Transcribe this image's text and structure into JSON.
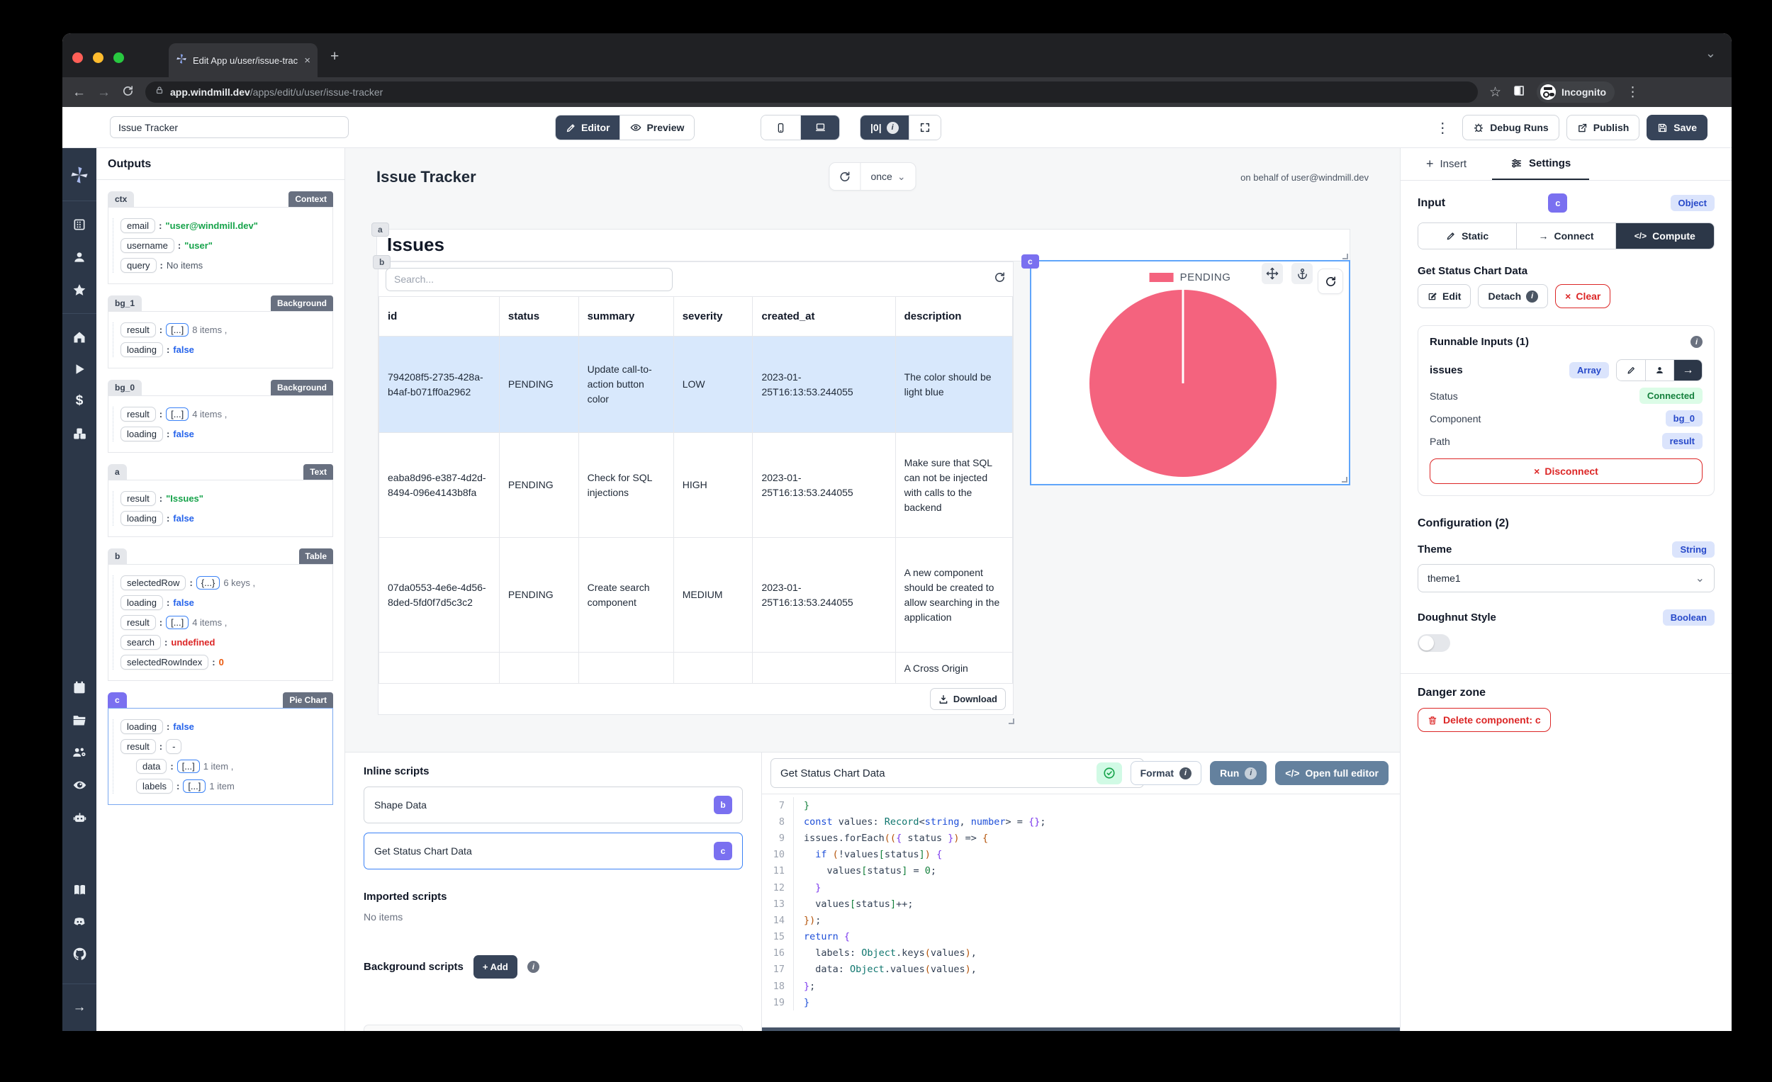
{
  "icons": {
    "close": "×",
    "new_tab": "+",
    "chevron_down": "⌄",
    "back": "←",
    "forward": "→",
    "kebab": "⋮",
    "star": "☆",
    "plus": "+",
    "x": "×",
    "check": "✓",
    "arrow_right": "→",
    "code": "</>",
    "debug_badge": "|0|",
    "info": "i",
    "dollar": "$",
    "play": "▶"
  },
  "browser": {
    "tab_title": "Edit App u/user/issue-tracker |",
    "url_domain": "app.windmill.dev",
    "url_path": "/apps/edit/u/user/issue-tracker",
    "incognito_label": "Incognito"
  },
  "appbar": {
    "app_name_value": "Issue Tracker",
    "editor": "Editor",
    "preview": "Preview",
    "debug_runs": "Debug Runs",
    "publish": "Publish",
    "save": "Save"
  },
  "outputs": {
    "title": "Outputs",
    "sections": [
      {
        "id": "ctx",
        "type": "Context",
        "rows": [
          {
            "key": "email",
            "value": "\"user@windmill.dev\""
          },
          {
            "key": "username",
            "value": "\"user\""
          },
          {
            "key": "query",
            "value": "No items"
          }
        ]
      },
      {
        "id": "bg_1",
        "type": "Background",
        "rows": [
          {
            "key": "result",
            "bracket": "[...]",
            "value": "8 items ,"
          },
          {
            "key": "loading",
            "value": "false"
          }
        ]
      },
      {
        "id": "bg_0",
        "type": "Background",
        "rows": [
          {
            "key": "result",
            "bracket": "[...]",
            "value": "4 items ,"
          },
          {
            "key": "loading",
            "value": "false"
          }
        ]
      },
      {
        "id": "a",
        "type": "Text",
        "rows": [
          {
            "key": "result",
            "value": "\"Issues\""
          },
          {
            "key": "loading",
            "value": "false"
          }
        ]
      },
      {
        "id": "b",
        "type": "Table",
        "rows": [
          {
            "key": "selectedRow",
            "bracket": "{...}",
            "value": "6 keys ,"
          },
          {
            "key": "loading",
            "value": "false"
          },
          {
            "key": "result",
            "bracket": "[...]",
            "value": "4 items ,"
          },
          {
            "key": "search",
            "value": "undefined"
          },
          {
            "key": "selectedRowIndex",
            "value": "0"
          }
        ]
      },
      {
        "id": "c",
        "type": "Pie Chart",
        "rows": [
          {
            "key": "loading",
            "value": "false"
          },
          {
            "key": "result",
            "bracket": "-",
            "value": ""
          },
          {
            "key": "data",
            "bracket": "[...]",
            "value": "1 item ,"
          },
          {
            "key": "labels",
            "bracket": "[...]",
            "value": "1 item"
          }
        ]
      }
    ]
  },
  "canvas": {
    "title": "Issue Tracker",
    "refresh_mode": "once",
    "behalf": "on behalf of user@windmill.dev",
    "issues_heading": "Issues",
    "search_placeholder": "Search...",
    "download": "Download",
    "badges": {
      "a": "a",
      "b": "b",
      "c": "c"
    },
    "table": {
      "headers": [
        "id",
        "status",
        "summary",
        "severity",
        "created_at",
        "description"
      ],
      "rows": [
        [
          "794208f5-2735-428a-b4af-b071ff0a2962",
          "PENDING",
          "Update call-to-action button color",
          "LOW",
          "2023-01-25T16:13:53.244055",
          "The color should be light blue"
        ],
        [
          "eaba8d96-e387-4d2d-8494-096e4143b8fa",
          "PENDING",
          "Check for SQL injections",
          "HIGH",
          "2023-01-25T16:13:53.244055",
          "Make sure that SQL can not be injected with calls to the backend"
        ],
        [
          "07da0553-4e6e-4d56-8ded-5fd0f7d5c3c2",
          "PENDING",
          "Create search component",
          "MEDIUM",
          "2023-01-25T16:13:53.244055",
          "A new component should be created to allow searching in the application"
        ],
        [
          "",
          "",
          "",
          "",
          "",
          "A Cross Origin"
        ]
      ]
    }
  },
  "chart_data": {
    "type": "pie",
    "labels": [
      "PENDING"
    ],
    "values": [
      4
    ],
    "colors": [
      "#f4637e"
    ],
    "title": "",
    "legend_position": "top"
  },
  "scripts_panel": {
    "inline_title": "Inline scripts",
    "items": [
      {
        "label": "Shape Data",
        "badge": "b"
      },
      {
        "label": "Get Status Chart Data",
        "badge": "c"
      }
    ],
    "imported_title": "Imported scripts",
    "imported_empty": "No items",
    "background_title": "Background scripts",
    "add": "+ Add"
  },
  "code_panel": {
    "name_value": "Get Status Chart Data",
    "format": "Format",
    "run": "Run",
    "open_full": "Open full editor",
    "lines": [
      {
        "n": 7,
        "seg": [
          [
            "pg",
            "}"
          ]
        ]
      },
      {
        "n": 8,
        "seg": [
          [
            "k",
            "const"
          ],
          [
            "d",
            " values: "
          ],
          [
            "t",
            "Record"
          ],
          [
            "d",
            "<"
          ],
          [
            "b",
            "string"
          ],
          [
            "d",
            ", "
          ],
          [
            "b",
            "number"
          ],
          [
            "d",
            "> = "
          ],
          [
            "pp",
            "{}"
          ],
          [
            "d",
            ";"
          ]
        ]
      },
      {
        "n": 9,
        "seg": [
          [
            "d",
            "issues.forEach"
          ],
          [
            "po",
            "(("
          ],
          [
            "pp",
            "{"
          ],
          [
            "d",
            " status "
          ],
          [
            "pp",
            "}"
          ],
          [
            "po",
            ")"
          ],
          [
            "d",
            " => "
          ],
          [
            "po",
            "{"
          ]
        ]
      },
      {
        "n": 10,
        "seg": [
          [
            "d",
            "  "
          ],
          [
            "k",
            "if"
          ],
          [
            "d",
            " "
          ],
          [
            "po",
            "("
          ],
          [
            "d",
            "!values"
          ],
          [
            "pg",
            "["
          ],
          [
            "d",
            "status"
          ],
          [
            "pg",
            "]"
          ],
          [
            "po",
            ")"
          ],
          [
            "d",
            " "
          ],
          [
            "pp",
            "{"
          ]
        ]
      },
      {
        "n": 11,
        "seg": [
          [
            "d",
            "    values"
          ],
          [
            "pg",
            "["
          ],
          [
            "d",
            "status"
          ],
          [
            "pg",
            "]"
          ],
          [
            "d",
            " = "
          ],
          [
            "n",
            "0"
          ],
          [
            "d",
            ";"
          ]
        ]
      },
      {
        "n": 12,
        "seg": [
          [
            "d",
            "  "
          ],
          [
            "pp",
            "}"
          ]
        ]
      },
      {
        "n": 13,
        "seg": [
          [
            "d",
            "  values"
          ],
          [
            "pg",
            "["
          ],
          [
            "d",
            "status"
          ],
          [
            "pg",
            "]"
          ],
          [
            "d",
            "++;"
          ]
        ]
      },
      {
        "n": 14,
        "seg": [
          [
            "po",
            "})"
          ],
          [
            "d",
            ";"
          ]
        ]
      },
      {
        "n": 15,
        "seg": [
          [
            "k",
            "return"
          ],
          [
            "d",
            " "
          ],
          [
            "pp",
            "{"
          ]
        ]
      },
      {
        "n": 16,
        "seg": [
          [
            "d",
            "  labels: "
          ],
          [
            "t",
            "Object"
          ],
          [
            "d",
            ".keys"
          ],
          [
            "po",
            "("
          ],
          [
            "d",
            "values"
          ],
          [
            "po",
            ")"
          ],
          [
            "d",
            ","
          ]
        ]
      },
      {
        "n": 17,
        "seg": [
          [
            "d",
            "  data: "
          ],
          [
            "t",
            "Object"
          ],
          [
            "d",
            ".values"
          ],
          [
            "po",
            "("
          ],
          [
            "d",
            "values"
          ],
          [
            "po",
            ")"
          ],
          [
            "d",
            ","
          ]
        ]
      },
      {
        "n": 18,
        "seg": [
          [
            "pp",
            "}"
          ],
          [
            "d",
            ";"
          ]
        ]
      },
      {
        "n": 19,
        "seg": [
          [
            "pb",
            "}"
          ]
        ]
      }
    ]
  },
  "settings": {
    "insert_tab": "Insert",
    "settings_tab": "Settings",
    "input_label": "Input",
    "component_badge": "c",
    "type_badge": "Object",
    "static_label": "Static",
    "connect_label": "Connect",
    "compute_label": "Compute",
    "script_name": "Get Status Chart Data",
    "edit": "Edit",
    "detach": "Detach",
    "clear": "Clear",
    "runnable_title": "Runnable Inputs (1)",
    "issues_label": "issues",
    "array_badge": "Array",
    "status_label": "Status",
    "status_value": "Connected",
    "component_label": "Component",
    "component_value": "bg_0",
    "path_label": "Path",
    "path_value": "result",
    "disconnect": "Disconnect",
    "config_title": "Configuration (2)",
    "theme_label": "Theme",
    "theme_type": "String",
    "theme_value": "theme1",
    "doughnut_label": "Doughnut Style",
    "doughnut_type": "Boolean",
    "danger_title": "Danger zone",
    "delete_btn": "Delete component: c"
  }
}
